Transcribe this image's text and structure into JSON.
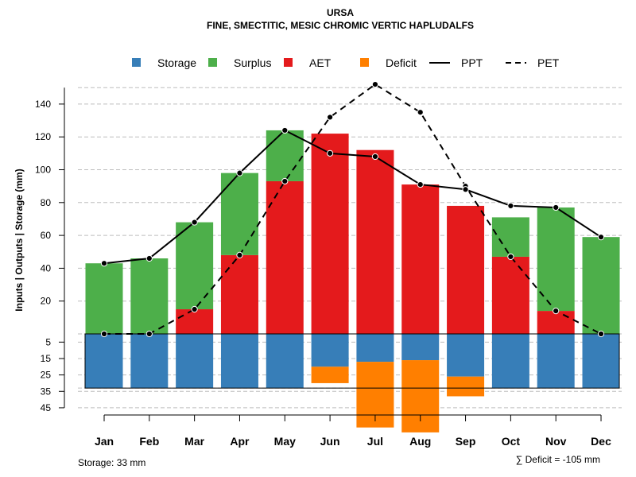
{
  "chart_data": {
    "type": "bar",
    "title": "URSA",
    "subtitle": "FINE, SMECTITIC, MESIC CHROMIC VERTIC HAPLUDALFS",
    "ylabel": "Inputs | Outputs | Storage    (mm)",
    "ylim": [
      -50,
      150
    ],
    "yticks_upper": [
      20,
      40,
      60,
      80,
      100,
      120,
      140
    ],
    "yticks_lower": [
      5,
      15,
      25,
      35,
      45
    ],
    "categories": [
      "Jan",
      "Feb",
      "Mar",
      "Apr",
      "May",
      "Jun",
      "Jul",
      "Aug",
      "Sep",
      "Oct",
      "Nov",
      "Dec"
    ],
    "storage_capacity": 33,
    "series": [
      {
        "name": "Storage",
        "color": "#377EB8",
        "values": [
          33,
          33,
          33,
          33,
          33,
          20,
          17,
          16,
          26,
          33,
          33,
          33
        ]
      },
      {
        "name": "Surplus",
        "color": "#4DAF4A",
        "values": [
          43,
          46,
          53,
          50,
          31,
          0,
          0,
          0,
          0,
          24,
          63,
          59
        ]
      },
      {
        "name": "AET",
        "color": "#E41A1C",
        "values": [
          0,
          0,
          15,
          48,
          93,
          122,
          112,
          91,
          78,
          47,
          14,
          0
        ]
      },
      {
        "name": "Deficit",
        "color": "#FF7F00",
        "values": [
          0,
          0,
          0,
          0,
          0,
          10,
          40,
          44,
          12,
          0,
          0,
          0
        ]
      },
      {
        "name": "PPT",
        "color": "#000000",
        "style": "solid",
        "values": [
          43,
          46,
          68,
          98,
          124,
          110,
          108,
          91,
          88,
          78,
          77,
          59
        ]
      },
      {
        "name": "PET",
        "color": "#000000",
        "style": "dashed",
        "values": [
          0,
          0,
          15,
          48,
          93,
          132,
          152,
          135,
          90,
          47,
          14,
          0
        ]
      }
    ],
    "legend_position": "top",
    "storage_note": "Storage: 33 mm",
    "deficit_note": "∑ Deficit = -105 mm"
  }
}
